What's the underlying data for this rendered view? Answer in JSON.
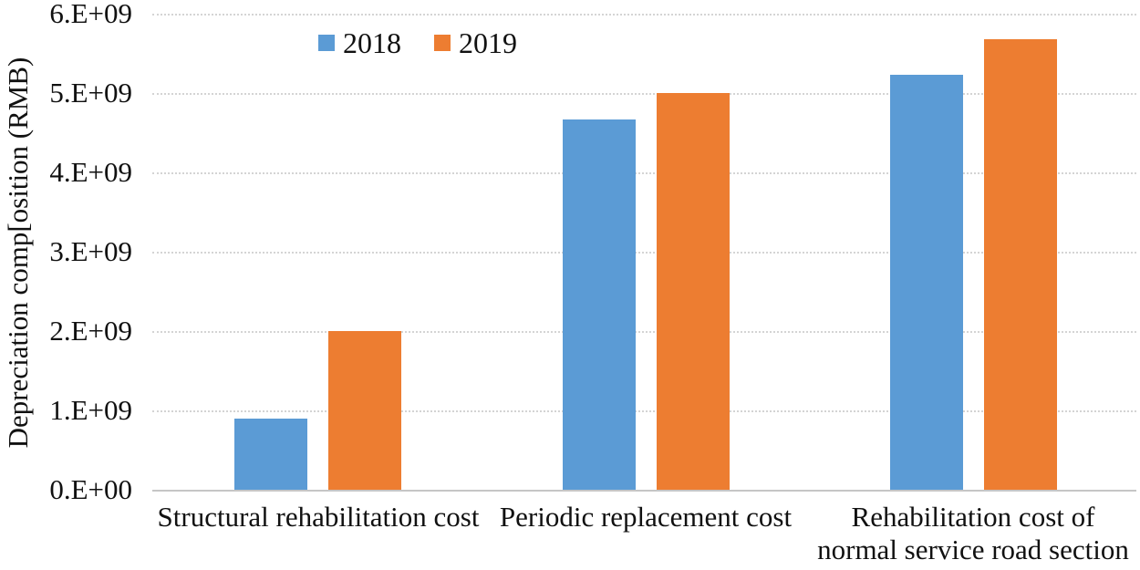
{
  "chart_data": {
    "type": "bar",
    "title": "",
    "xlabel": "",
    "ylabel": "Depreciation comp[osition (RMB)",
    "categories": [
      "Structural rehabilitation cost",
      "Periodic replacement cost",
      "Rehabilitation cost of normal service road section"
    ],
    "series": [
      {
        "name": "2018",
        "color": "#5B9BD5",
        "values": [
          900000000,
          4670000000,
          5230000000
        ]
      },
      {
        "name": "2019",
        "color": "#ED7D31",
        "values": [
          2000000000,
          5000000000,
          5680000000
        ]
      }
    ],
    "ylim": [
      0,
      6000000000
    ],
    "ytick_labels": [
      "0.E+00",
      "1.E+09",
      "2.E+09",
      "3.E+09",
      "4.E+09",
      "5.E+09",
      "6.E+09"
    ],
    "grid": true,
    "legend_position": "top"
  },
  "colors": {
    "gridline": "#d4d4d4",
    "axis_line": "#c6c6c6",
    "text": "#111111"
  }
}
